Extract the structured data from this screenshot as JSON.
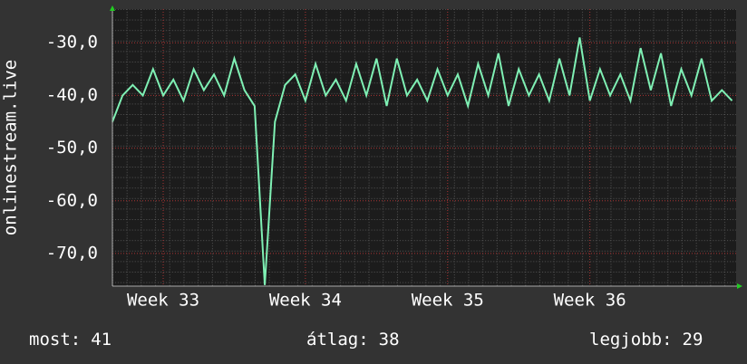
{
  "chart_data": {
    "type": "line",
    "y_label": "onlinestream.live",
    "x": [
      0,
      0.5,
      1,
      1.5,
      2,
      2.5,
      3,
      3.5,
      4,
      4.5,
      5,
      5.5,
      6,
      6.5,
      7,
      7.5,
      8,
      8.5,
      9,
      9.5,
      10,
      10.5,
      11,
      11.5,
      12,
      12.5,
      13,
      13.5,
      14,
      14.5,
      15,
      15.5,
      16,
      16.5,
      17,
      17.5,
      18,
      18.5,
      19,
      19.5,
      20,
      20.5,
      21,
      21.5,
      22,
      22.5,
      23,
      23.5,
      24,
      24.5,
      25,
      25.5,
      26,
      26.5,
      27,
      27.5,
      28,
      28.5,
      29,
      29.5,
      30,
      30.5
    ],
    "series": [
      {
        "color": "#7ff0b4",
        "values": [
          -45,
          -40,
          -38,
          -40,
          -35,
          -40,
          -37,
          -41,
          -35,
          -39,
          -36,
          -40,
          -33,
          -39,
          -42,
          -76,
          -45,
          -38,
          -36,
          -41,
          -34,
          -40,
          -37,
          -41,
          -34,
          -40,
          -33,
          -42,
          -33,
          -40,
          -37,
          -41,
          -35,
          -40,
          -36,
          -42,
          -34,
          -40,
          -32,
          -42,
          -35,
          -40,
          -36,
          -41,
          -33,
          -40,
          -29,
          -41,
          -35,
          -40,
          -36,
          -41,
          -31,
          -39,
          -32,
          -42,
          -35,
          -40,
          -33,
          -41,
          -39,
          -41
        ]
      }
    ],
    "xlim": [
      0,
      30.7
    ],
    "xticks": [
      {
        "value": 2.5,
        "label": "Week 33"
      },
      {
        "value": 9.5,
        "label": "Week 34"
      },
      {
        "value": 16.5,
        "label": "Week 35"
      },
      {
        "value": 23.5,
        "label": "Week 36"
      }
    ],
    "ylim": [
      -76.2,
      -23.6
    ],
    "yticks": [
      {
        "value": -30,
        "label": "-30,0"
      },
      {
        "value": -40,
        "label": "-40,0"
      },
      {
        "value": -50,
        "label": "-50,0"
      },
      {
        "value": -60,
        "label": "-60,0"
      },
      {
        "value": -70,
        "label": "-70,0"
      }
    ],
    "grid": true,
    "stats": [
      {
        "label": "most:",
        "value": 41
      },
      {
        "label": "átlag:",
        "value": 38
      },
      {
        "label": "legjobb:",
        "value": 29
      }
    ]
  }
}
